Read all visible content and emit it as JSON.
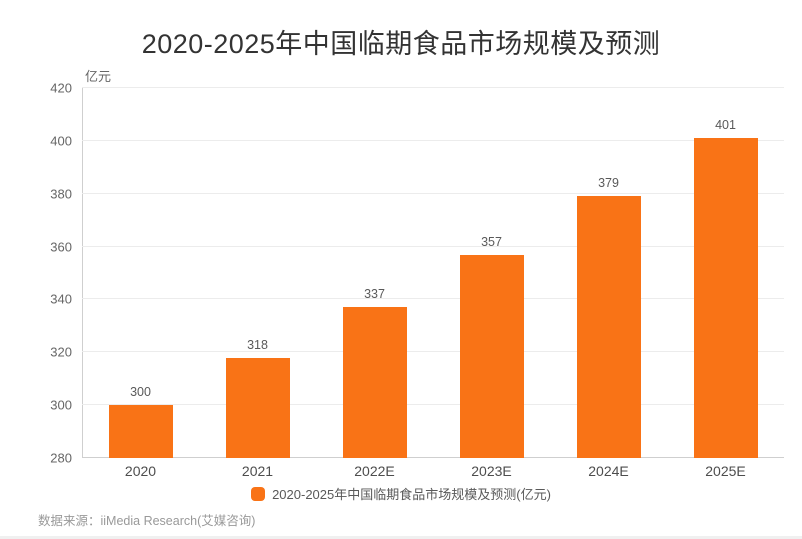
{
  "page": {
    "title": "2020-2025年中国临期食品市场规模及预测",
    "source_note": "数据来源：iiMedia Research(艾媒咨询)"
  },
  "y_axis": {
    "unit_label": "亿元"
  },
  "legend": {
    "label": "2020-2025年中国临期食品市场规模及预测(亿元)"
  },
  "colors": {
    "bar": "#F97316",
    "title_text": "#333333",
    "axis_text": "#666666",
    "xlabel_text": "#4d4d4d",
    "value_text": "#595959",
    "gridline": "#ececec",
    "axis_line": "#cfcfcf",
    "source_text": "#999999"
  },
  "chart_data": {
    "type": "bar",
    "title": "2020-2025年中国临期食品市场规模及预测",
    "categories": [
      "2020",
      "2021",
      "2022E",
      "2023E",
      "2024E",
      "2025E"
    ],
    "values": [
      300,
      318,
      337,
      357,
      379,
      401
    ],
    "xlabel": "",
    "ylabel": "亿元",
    "ylim": [
      280,
      420
    ],
    "ytick_step": 20,
    "grid": true,
    "legend_position": "bottom",
    "legend_label": "2020-2025年中国临期食品市场规模及预测(亿元)",
    "bar_color": "#F97316",
    "data_labels": true
  }
}
